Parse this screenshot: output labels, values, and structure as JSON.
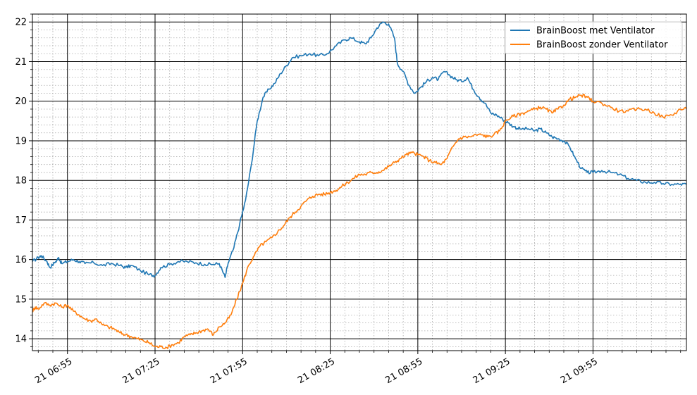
{
  "chart_data": {
    "type": "line",
    "title": "",
    "xlabel": "",
    "ylabel": "",
    "x_axis_kind": "time",
    "x_range": [
      "06:43",
      "10:27"
    ],
    "ylim": [
      13.7,
      22.2
    ],
    "grid": {
      "major": true,
      "minor": true
    },
    "legend_position": "top-right",
    "x_ticks": [
      {
        "time": "06:55",
        "label": "21 06:55"
      },
      {
        "time": "07:25",
        "label": "21 07:25"
      },
      {
        "time": "07:55",
        "label": "21 07:55"
      },
      {
        "time": "08:25",
        "label": "21 08:25"
      },
      {
        "time": "08:55",
        "label": "21 08:55"
      },
      {
        "time": "09:25",
        "label": "21 09:25"
      },
      {
        "time": "09:55",
        "label": "21 09:55"
      }
    ],
    "y_ticks": [
      {
        "value": 14,
        "label": "14"
      },
      {
        "value": 15,
        "label": "15"
      },
      {
        "value": 16,
        "label": "16"
      },
      {
        "value": 17,
        "label": "17"
      },
      {
        "value": 18,
        "label": "18"
      },
      {
        "value": 19,
        "label": "19"
      },
      {
        "value": 20,
        "label": "20"
      },
      {
        "value": 21,
        "label": "21"
      },
      {
        "value": 22,
        "label": "22"
      }
    ],
    "series": [
      {
        "name": "BrainBoost met Ventilator",
        "color": "#1f77b4",
        "points": [
          [
            "06:43",
            15.95
          ],
          [
            "06:45",
            16.05
          ],
          [
            "06:46",
            16.1
          ],
          [
            "06:48",
            15.95
          ],
          [
            "06:49",
            15.8
          ],
          [
            "06:51",
            15.95
          ],
          [
            "06:52",
            16.05
          ],
          [
            "06:53",
            15.9
          ],
          [
            "06:55",
            15.95
          ],
          [
            "06:57",
            16.0
          ],
          [
            "06:59",
            15.95
          ],
          [
            "07:01",
            15.9
          ],
          [
            "07:04",
            15.92
          ],
          [
            "07:07",
            15.85
          ],
          [
            "07:10",
            15.9
          ],
          [
            "07:13",
            15.85
          ],
          [
            "07:15",
            15.8
          ],
          [
            "07:17",
            15.85
          ],
          [
            "07:20",
            15.72
          ],
          [
            "07:23",
            15.62
          ],
          [
            "07:25",
            15.6
          ],
          [
            "07:27",
            15.8
          ],
          [
            "07:30",
            15.88
          ],
          [
            "07:33",
            15.95
          ],
          [
            "07:36",
            15.95
          ],
          [
            "07:39",
            15.92
          ],
          [
            "07:42",
            15.88
          ],
          [
            "07:45",
            15.88
          ],
          [
            "07:47",
            15.9
          ],
          [
            "07:49",
            15.55
          ],
          [
            "07:50",
            15.9
          ],
          [
            "07:52",
            16.3
          ],
          [
            "07:54",
            16.9
          ],
          [
            "07:56",
            17.5
          ],
          [
            "07:58",
            18.4
          ],
          [
            "08:00",
            19.5
          ],
          [
            "08:02",
            20.1
          ],
          [
            "08:04",
            20.3
          ],
          [
            "08:06",
            20.45
          ],
          [
            "08:08",
            20.7
          ],
          [
            "08:10",
            20.9
          ],
          [
            "08:12",
            21.1
          ],
          [
            "08:15",
            21.15
          ],
          [
            "08:18",
            21.2
          ],
          [
            "08:21",
            21.15
          ],
          [
            "08:24",
            21.2
          ],
          [
            "08:27",
            21.4
          ],
          [
            "08:30",
            21.55
          ],
          [
            "08:32",
            21.6
          ],
          [
            "08:35",
            21.5
          ],
          [
            "08:37",
            21.45
          ],
          [
            "08:39",
            21.6
          ],
          [
            "08:41",
            21.85
          ],
          [
            "08:43",
            22.0
          ],
          [
            "08:45",
            21.95
          ],
          [
            "08:47",
            21.6
          ],
          [
            "08:48",
            20.95
          ],
          [
            "08:50",
            20.75
          ],
          [
            "08:52",
            20.4
          ],
          [
            "08:54",
            20.2
          ],
          [
            "08:56",
            20.35
          ],
          [
            "08:58",
            20.5
          ],
          [
            "09:00",
            20.6
          ],
          [
            "09:02",
            20.55
          ],
          [
            "09:04",
            20.75
          ],
          [
            "09:06",
            20.65
          ],
          [
            "09:08",
            20.55
          ],
          [
            "09:10",
            20.5
          ],
          [
            "09:12",
            20.6
          ],
          [
            "09:14",
            20.3
          ],
          [
            "09:16",
            20.1
          ],
          [
            "09:18",
            19.95
          ],
          [
            "09:20",
            19.7
          ],
          [
            "09:22",
            19.65
          ],
          [
            "09:24",
            19.55
          ],
          [
            "09:26",
            19.45
          ],
          [
            "09:28",
            19.35
          ],
          [
            "09:30",
            19.3
          ],
          [
            "09:33",
            19.3
          ],
          [
            "09:35",
            19.25
          ],
          [
            "09:37",
            19.3
          ],
          [
            "09:39",
            19.2
          ],
          [
            "09:41",
            19.1
          ],
          [
            "09:43",
            19.05
          ],
          [
            "09:45",
            19.0
          ],
          [
            "09:47",
            18.85
          ],
          [
            "09:49",
            18.55
          ],
          [
            "09:51",
            18.3
          ],
          [
            "09:53",
            18.2
          ],
          [
            "09:55",
            18.2
          ],
          [
            "09:58",
            18.25
          ],
          [
            "10:01",
            18.2
          ],
          [
            "10:04",
            18.15
          ],
          [
            "10:07",
            18.05
          ],
          [
            "10:10",
            18.0
          ],
          [
            "10:13",
            17.95
          ],
          [
            "10:16",
            17.95
          ],
          [
            "10:19",
            17.92
          ],
          [
            "10:22",
            17.9
          ],
          [
            "10:25",
            17.9
          ],
          [
            "10:27",
            17.9
          ]
        ]
      },
      {
        "name": "BrainBoost zonder Ventilator",
        "color": "#ff7f0e",
        "points": [
          [
            "06:43",
            14.7
          ],
          [
            "06:44",
            14.8
          ],
          [
            "06:45",
            14.75
          ],
          [
            "06:47",
            14.9
          ],
          [
            "06:49",
            14.85
          ],
          [
            "06:51",
            14.9
          ],
          [
            "06:53",
            14.8
          ],
          [
            "06:55",
            14.85
          ],
          [
            "06:57",
            14.7
          ],
          [
            "06:59",
            14.6
          ],
          [
            "07:01",
            14.5
          ],
          [
            "07:03",
            14.45
          ],
          [
            "07:05",
            14.5
          ],
          [
            "07:07",
            14.35
          ],
          [
            "07:09",
            14.3
          ],
          [
            "07:11",
            14.25
          ],
          [
            "07:13",
            14.15
          ],
          [
            "07:15",
            14.1
          ],
          [
            "07:17",
            14.05
          ],
          [
            "07:19",
            14.0
          ],
          [
            "07:21",
            13.95
          ],
          [
            "07:23",
            13.9
          ],
          [
            "07:25",
            13.8
          ],
          [
            "07:27",
            13.8
          ],
          [
            "07:29",
            13.78
          ],
          [
            "07:31",
            13.85
          ],
          [
            "07:33",
            13.9
          ],
          [
            "07:35",
            14.05
          ],
          [
            "07:37",
            14.1
          ],
          [
            "07:39",
            14.15
          ],
          [
            "07:41",
            14.2
          ],
          [
            "07:43",
            14.25
          ],
          [
            "07:45",
            14.1
          ],
          [
            "07:47",
            14.3
          ],
          [
            "07:49",
            14.4
          ],
          [
            "07:51",
            14.6
          ],
          [
            "07:53",
            15.0
          ],
          [
            "07:55",
            15.4
          ],
          [
            "07:57",
            15.85
          ],
          [
            "07:59",
            16.1
          ],
          [
            "08:01",
            16.35
          ],
          [
            "08:03",
            16.45
          ],
          [
            "08:05",
            16.55
          ],
          [
            "08:07",
            16.7
          ],
          [
            "08:09",
            16.85
          ],
          [
            "08:11",
            17.05
          ],
          [
            "08:13",
            17.2
          ],
          [
            "08:15",
            17.35
          ],
          [
            "08:17",
            17.5
          ],
          [
            "08:19",
            17.6
          ],
          [
            "08:21",
            17.65
          ],
          [
            "08:23",
            17.65
          ],
          [
            "08:25",
            17.7
          ],
          [
            "08:27",
            17.75
          ],
          [
            "08:29",
            17.85
          ],
          [
            "08:31",
            17.95
          ],
          [
            "08:33",
            18.05
          ],
          [
            "08:35",
            18.15
          ],
          [
            "08:37",
            18.15
          ],
          [
            "08:39",
            18.2
          ],
          [
            "08:41",
            18.2
          ],
          [
            "08:43",
            18.25
          ],
          [
            "08:45",
            18.35
          ],
          [
            "08:47",
            18.45
          ],
          [
            "08:49",
            18.55
          ],
          [
            "08:51",
            18.65
          ],
          [
            "08:53",
            18.7
          ],
          [
            "08:55",
            18.65
          ],
          [
            "08:57",
            18.6
          ],
          [
            "08:59",
            18.5
          ],
          [
            "09:01",
            18.45
          ],
          [
            "09:03",
            18.4
          ],
          [
            "09:05",
            18.55
          ],
          [
            "09:07",
            18.85
          ],
          [
            "09:09",
            19.05
          ],
          [
            "09:11",
            19.1
          ],
          [
            "09:13",
            19.1
          ],
          [
            "09:15",
            19.15
          ],
          [
            "09:17",
            19.15
          ],
          [
            "09:19",
            19.1
          ],
          [
            "09:21",
            19.15
          ],
          [
            "09:23",
            19.25
          ],
          [
            "09:25",
            19.5
          ],
          [
            "09:27",
            19.6
          ],
          [
            "09:29",
            19.65
          ],
          [
            "09:31",
            19.7
          ],
          [
            "09:33",
            19.75
          ],
          [
            "09:35",
            19.8
          ],
          [
            "09:37",
            19.85
          ],
          [
            "09:39",
            19.8
          ],
          [
            "09:41",
            19.7
          ],
          [
            "09:43",
            19.8
          ],
          [
            "09:45",
            19.9
          ],
          [
            "09:47",
            20.05
          ],
          [
            "09:49",
            20.1
          ],
          [
            "09:51",
            20.15
          ],
          [
            "09:53",
            20.1
          ],
          [
            "09:55",
            20.0
          ],
          [
            "09:58",
            19.95
          ],
          [
            "10:01",
            19.85
          ],
          [
            "10:04",
            19.75
          ],
          [
            "10:07",
            19.75
          ],
          [
            "10:10",
            19.8
          ],
          [
            "10:13",
            19.8
          ],
          [
            "10:16",
            19.7
          ],
          [
            "10:19",
            19.6
          ],
          [
            "10:22",
            19.65
          ],
          [
            "10:25",
            19.8
          ],
          [
            "10:27",
            19.8
          ]
        ]
      }
    ]
  }
}
